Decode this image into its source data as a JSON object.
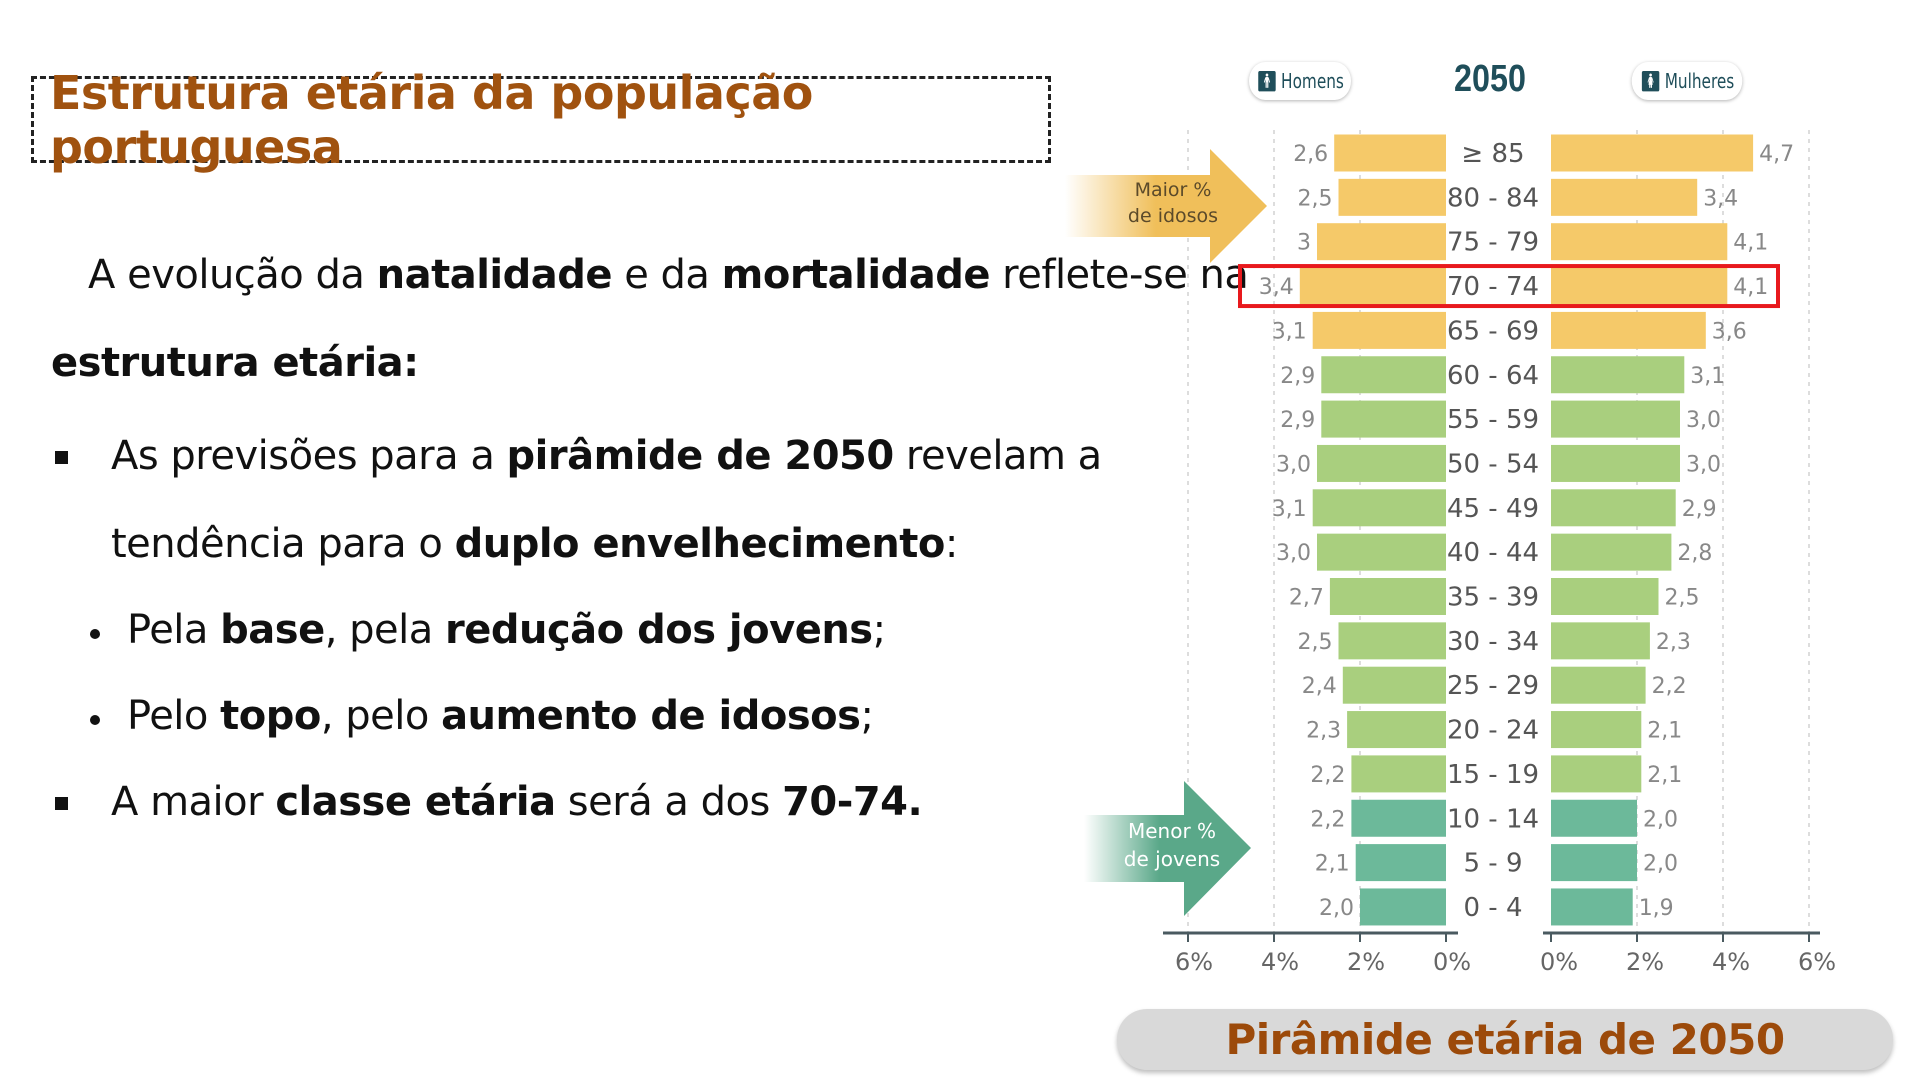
{
  "title": "Estrutura etária da população portuguesa",
  "body": {
    "intro": [
      "A evolução da ",
      "natalidade",
      " e da ",
      "mortalidade",
      " reflete-se na"
    ],
    "intro2": "estrutura etária:",
    "bullet1": [
      "As previsões para a ",
      "pirâmide de 2050",
      " revelam a"
    ],
    "bullet1b": [
      "tendência para o ",
      "duplo envelhecimento",
      ":"
    ],
    "sub1": [
      "Pela ",
      "base",
      ", pela ",
      "redução dos jovens",
      ";"
    ],
    "sub2": [
      "Pelo ",
      "topo",
      ", pelo ",
      "aumento de idosos",
      ";"
    ],
    "bullet2": [
      "A maior ",
      "classe etária",
      " será a dos ",
      "70-74."
    ]
  },
  "caption": "Pirâmide etária de 2050",
  "chart_data": {
    "type": "bar",
    "subtype": "population-pyramid",
    "title": "2050",
    "series_labels": {
      "left": "Homens",
      "right": "Mulheres"
    },
    "categories": [
      "≥ 85",
      "80 - 84",
      "75 - 79",
      "70 - 74",
      "65 - 69",
      "60 - 64",
      "55 - 59",
      "50 - 54",
      "45 - 49",
      "40 - 44",
      "35 - 39",
      "30 - 34",
      "25 - 29",
      "20 - 24",
      "15 - 19",
      "10 - 14",
      "5 - 9",
      "0 - 4"
    ],
    "series": [
      {
        "name": "Homens",
        "values": [
          2.6,
          2.5,
          3,
          3.4,
          3.1,
          2.9,
          2.9,
          3.0,
          3.1,
          3.0,
          2.7,
          2.5,
          2.4,
          2.3,
          2.2,
          2.2,
          2.1,
          2.0
        ],
        "labels": [
          "2,6",
          "2,5",
          "3",
          "3,4",
          "3,1",
          "2,9",
          "2,9",
          "3,0",
          "3,1",
          "3,0",
          "2,7",
          "2,5",
          "2,4",
          "2,3",
          "2,2",
          "2,2",
          "2,1",
          "2,0"
        ]
      },
      {
        "name": "Mulheres",
        "values": [
          4.7,
          3.4,
          4.1,
          4.1,
          3.6,
          3.1,
          3.0,
          3.0,
          2.9,
          2.8,
          2.5,
          2.3,
          2.2,
          2.1,
          2.1,
          2.0,
          2.0,
          1.9
        ],
        "labels": [
          "4,7",
          "3,4",
          "4,1",
          "4,1",
          "3,6",
          "3,1",
          "3,0",
          "3,0",
          "2,9",
          "2,8",
          "2,5",
          "2,3",
          "2,2",
          "2,1",
          "2,1",
          "2,0",
          "2,0",
          "1,9"
        ]
      }
    ],
    "left_ticks": [
      "6%",
      "4%",
      "2%",
      "0%"
    ],
    "right_ticks": [
      "0%",
      "2%",
      "4%",
      "6%"
    ],
    "xlim": [
      0,
      6
    ],
    "grid": true,
    "highlighted_category": "70 - 74",
    "group_colors": {
      "idosos": "#f5c969",
      "adultos": "#a9cf7e",
      "jovens": "#6cb99a"
    },
    "highlight_color": "#e8191d",
    "annotations": [
      {
        "text": "Maior % de idosos",
        "color": "#f0bf5a"
      },
      {
        "text": "Menor % de jovens",
        "color": "#5aa889"
      }
    ]
  }
}
